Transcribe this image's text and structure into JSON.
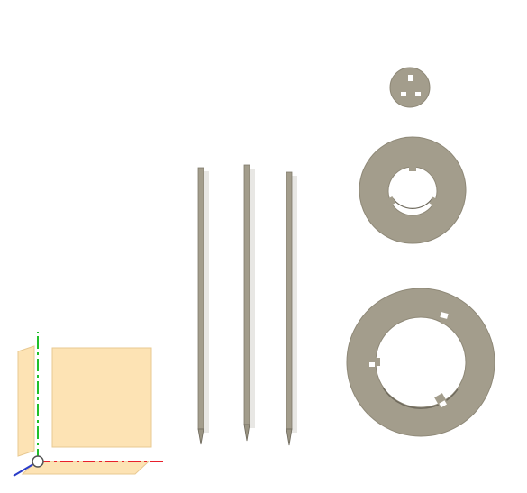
{
  "viewport": {
    "background": "#ffffff"
  },
  "colors": {
    "part_fill": "#a39d8c",
    "part_edge": "#8e8877",
    "part_highlight": "#b7b2a2",
    "rod_shadow": "#d9d7d2",
    "plane_fill": "#fde3b4",
    "plane_edge": "#e8c992",
    "axis_x": "#e8202a",
    "axis_y": "#22c02a",
    "axis_z": "#2a3cc8",
    "origin": "#555555"
  },
  "parts": {
    "rods": [
      {
        "name": "rod-left"
      },
      {
        "name": "rod-middle"
      },
      {
        "name": "rod-right"
      }
    ],
    "washers": [
      {
        "name": "small-disc",
        "slots": 3
      },
      {
        "name": "medium-washer",
        "slots": 3
      },
      {
        "name": "large-washer",
        "slots": 3
      }
    ]
  },
  "view_triad": {
    "icons": [
      "x-axis-icon",
      "y-axis-icon",
      "z-axis-icon",
      "origin-point-icon"
    ]
  }
}
